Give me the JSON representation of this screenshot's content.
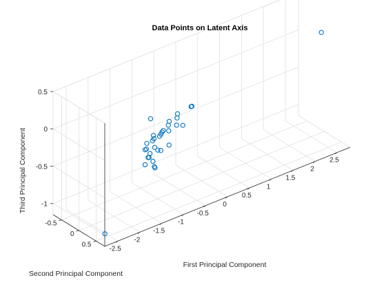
{
  "chart_data": {
    "type": "scatter",
    "title": "Data Points on Latent Axis",
    "xlabel": "First Principal Component",
    "ylabel": "Second Principal Component",
    "zlabel": "Third Principal Component",
    "xlim": [
      -2.8,
      2.8
    ],
    "ylim": [
      -0.75,
      0.75
    ],
    "zlim": [
      -1.15,
      0.5
    ],
    "xticks": [
      -2.5,
      -2,
      -1.5,
      -1,
      -0.5,
      0,
      0.5,
      1,
      1.5,
      2,
      2.5
    ],
    "xtick_labels": [
      "-2.5",
      "-2",
      "-1.5",
      "-1",
      "-0.5",
      "0",
      "0.5",
      "1",
      "1.5",
      "2",
      "2.5"
    ],
    "yticks": [
      -0.5,
      0,
      0.5
    ],
    "ytick_labels": [
      "-0.5",
      "0",
      "0.5"
    ],
    "zticks": [
      -1,
      -0.5,
      0,
      0.5
    ],
    "ztick_labels": [
      "-1",
      "-0.5",
      "0",
      "0.5"
    ],
    "grid": true,
    "marker": "circle",
    "color": "#0072bd",
    "series": [
      {
        "points": [
          [
            2.3,
            0.55,
            0.45
          ],
          [
            -0.9,
            0.2,
            -0.4
          ],
          [
            -0.35,
            -0.1,
            -0.35
          ],
          [
            -0.2,
            -0.05,
            -0.12
          ],
          [
            -0.3,
            0.1,
            -0.05
          ],
          [
            -0.55,
            0.0,
            -0.12
          ],
          [
            -0.6,
            0.05,
            -0.15
          ],
          [
            -0.7,
            -0.05,
            -0.2
          ],
          [
            -0.65,
            0.1,
            -0.22
          ],
          [
            -0.8,
            0.05,
            -0.2
          ],
          [
            -0.75,
            0.0,
            -0.3
          ],
          [
            -0.85,
            -0.1,
            -0.35
          ],
          [
            -0.9,
            0.0,
            -0.28
          ],
          [
            -1.0,
            0.05,
            -0.3
          ],
          [
            -1.05,
            -0.05,
            -0.35
          ],
          [
            -0.95,
            0.1,
            -0.22
          ],
          [
            -1.1,
            0.0,
            -0.28
          ],
          [
            -1.15,
            0.1,
            -0.4
          ],
          [
            -1.05,
            0.15,
            -0.45
          ],
          [
            -1.0,
            0.0,
            -0.5
          ],
          [
            -1.1,
            -0.1,
            -0.55
          ],
          [
            -1.15,
            0.05,
            -0.6
          ],
          [
            -1.2,
            0.1,
            -0.3
          ],
          [
            -1.25,
            0.0,
            -0.35
          ],
          [
            -1.3,
            0.05,
            -0.4
          ],
          [
            -1.25,
            -0.05,
            -0.45
          ],
          [
            -1.3,
            0.1,
            -0.5
          ],
          [
            -1.2,
            0.0,
            -0.55
          ],
          [
            -1.25,
            -0.05,
            -0.65
          ],
          [
            -1.0,
            -0.1,
            -0.75
          ],
          [
            -1.0,
            -0.08,
            -0.76
          ],
          [
            -1.4,
            0.3,
            0.1
          ],
          [
            -2.6,
            0.5,
            -1.1
          ]
        ]
      }
    ]
  }
}
